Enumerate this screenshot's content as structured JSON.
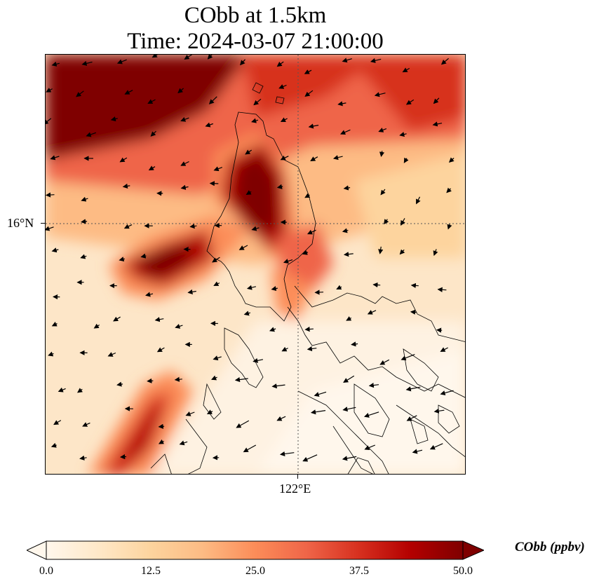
{
  "title_line1": "CObb at 1.5km",
  "title_line2": "Time: 2024-03-07 21:00:00",
  "axes": {
    "lat_label": "16°N",
    "lon_label": "122°E"
  },
  "colorbar": {
    "title": "CObb (ppbv)",
    "min": 0.0,
    "max": 50.0,
    "ticks": [
      "0.0",
      "12.5",
      "25.0",
      "37.5",
      "50.0"
    ],
    "colors": [
      "#fff7ec",
      "#fee8c8",
      "#fdd49e",
      "#fdbb84",
      "#fc8d59",
      "#ef6548",
      "#d7301f",
      "#b30000",
      "#7f0000"
    ]
  },
  "layers": [
    "CObb concentration field",
    "wind vectors",
    "coastlines",
    "lat/lon gridlines"
  ]
}
